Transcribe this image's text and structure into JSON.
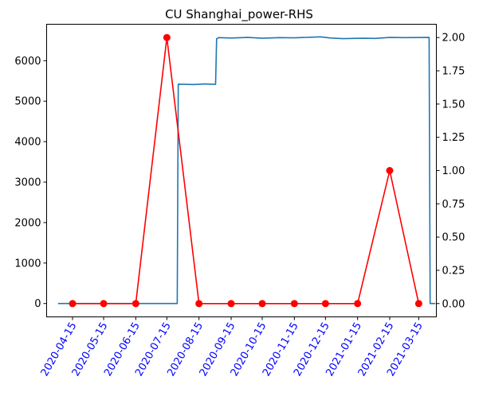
{
  "chart_data": {
    "type": "line",
    "title": "CU Shanghai_power-RHS",
    "xlabel": "",
    "ylabel_left": "",
    "ylabel_right": "",
    "left_yticks": [
      0,
      1000,
      2000,
      3000,
      4000,
      5000,
      6000
    ],
    "left_ylim": [
      -330,
      6900
    ],
    "right_yticks": [
      "0.00",
      "0.25",
      "0.50",
      "0.75",
      "1.00",
      "1.25",
      "1.50",
      "1.75",
      "2.00"
    ],
    "right_ylim": [
      -0.1,
      2.1
    ],
    "xlim": [
      "2020-03-21",
      "2021-04-01"
    ],
    "x_ticks": [
      "2020-04-15",
      "2020-05-15",
      "2020-06-15",
      "2020-07-15",
      "2020-08-15",
      "2020-09-15",
      "2020-10-15",
      "2020-11-15",
      "2020-12-15",
      "2021-01-15",
      "2021-02-15",
      "2021-03-15"
    ],
    "x_tick_color": "#0000ff",
    "grid": false,
    "legend": "none",
    "series": [
      {
        "axis": "left",
        "color": "#1f77b4",
        "marker": "none",
        "points": [
          [
            "2020-04-01",
            0
          ],
          [
            "2020-07-25",
            0
          ],
          [
            "2020-07-26",
            5420
          ],
          [
            "2020-08-10",
            5410
          ],
          [
            "2020-08-20",
            5425
          ],
          [
            "2020-08-31",
            5415
          ],
          [
            "2020-09-01",
            6540
          ],
          [
            "2020-09-03",
            6570
          ],
          [
            "2020-09-15",
            6560
          ],
          [
            "2020-10-01",
            6575
          ],
          [
            "2020-10-15",
            6555
          ],
          [
            "2020-11-01",
            6570
          ],
          [
            "2020-11-15",
            6565
          ],
          [
            "2020-12-01",
            6580
          ],
          [
            "2020-12-10",
            6590
          ],
          [
            "2020-12-20",
            6560
          ],
          [
            "2021-01-01",
            6545
          ],
          [
            "2021-01-20",
            6555
          ],
          [
            "2021-02-01",
            6550
          ],
          [
            "2021-02-15",
            6575
          ],
          [
            "2021-03-01",
            6570
          ],
          [
            "2021-03-25",
            6575
          ],
          [
            "2021-03-26",
            0
          ],
          [
            "2021-03-31",
            0
          ]
        ]
      },
      {
        "axis": "right",
        "color": "#ff0000",
        "marker": "circle",
        "points": [
          [
            "2020-04-15",
            0
          ],
          [
            "2020-05-15",
            0
          ],
          [
            "2020-06-15",
            0
          ],
          [
            "2020-07-15",
            2
          ],
          [
            "2020-08-15",
            0
          ],
          [
            "2020-09-15",
            0
          ],
          [
            "2020-10-15",
            0
          ],
          [
            "2020-11-15",
            0
          ],
          [
            "2020-12-15",
            0
          ],
          [
            "2021-01-15",
            0
          ],
          [
            "2021-02-15",
            1
          ],
          [
            "2021-03-15",
            0
          ]
        ]
      }
    ]
  }
}
